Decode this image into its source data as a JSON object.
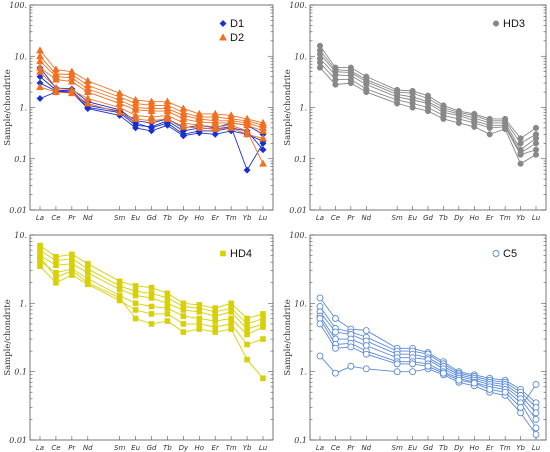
{
  "chart_data": [
    {
      "type": "line",
      "panel": "top-left",
      "categories": [
        "La",
        "Ce",
        "Pr",
        "Nd",
        "Sm",
        "Eu",
        "Gd",
        "Tb",
        "Dy",
        "Ho",
        "Er",
        "Tm",
        "Yb",
        "Lu"
      ],
      "x_positions": [
        0,
        1,
        2,
        3,
        5,
        6,
        7,
        8,
        9,
        10,
        11,
        12,
        13,
        14
      ],
      "ylabel": "Sample/chondrite",
      "yscale": "log",
      "ylim": [
        0.01,
        100
      ],
      "yticks": [
        "0.01",
        "0.1",
        "1.",
        "10.",
        "100."
      ],
      "legend_position": "top-right",
      "series": [
        {
          "name": "D1",
          "group": "D1",
          "color": "#1a2fd0",
          "marker": "diamond",
          "values": [
            6.0,
            2.4,
            2.3,
            1.3,
            0.9,
            0.55,
            0.5,
            0.6,
            0.4,
            0.45,
            0.4,
            0.5,
            0.45,
            0.3
          ]
        },
        {
          "name": "",
          "group": "D1",
          "color": "#1a2fd0",
          "marker": "diamond",
          "values": [
            1.5,
            2.0,
            2.0,
            1.0,
            0.8,
            0.45,
            0.42,
            0.55,
            0.35,
            0.4,
            0.38,
            0.42,
            0.06,
            0.2
          ]
        },
        {
          "name": "",
          "group": "D1",
          "color": "#1a2fd0",
          "marker": "diamond",
          "values": [
            4.0,
            2.2,
            2.1,
            1.1,
            0.85,
            0.5,
            0.4,
            0.5,
            0.3,
            0.35,
            0.35,
            0.4,
            0.35,
            0.15
          ]
        },
        {
          "name": "",
          "group": "D1",
          "color": "#1a2fd0",
          "marker": "diamond",
          "values": [
            3.0,
            2.1,
            2.0,
            0.95,
            0.7,
            0.4,
            0.35,
            0.45,
            0.28,
            0.32,
            0.3,
            0.35,
            0.3,
            0.22
          ]
        },
        {
          "name": "D2",
          "group": "D2",
          "color": "#f07020",
          "marker": "triangle",
          "values": [
            13,
            5.5,
            5.0,
            3.3,
            1.9,
            1.4,
            1.3,
            1.3,
            0.95,
            0.75,
            0.75,
            0.7,
            0.6,
            0.5
          ]
        },
        {
          "name": "",
          "group": "D2",
          "color": "#f07020",
          "marker": "triangle",
          "values": [
            10,
            4.5,
            4.4,
            2.7,
            1.6,
            1.2,
            1.1,
            1.1,
            0.8,
            0.65,
            0.65,
            0.6,
            0.55,
            0.45
          ]
        },
        {
          "name": "",
          "group": "D2",
          "color": "#f07020",
          "marker": "triangle",
          "values": [
            8,
            4.0,
            3.8,
            2.3,
            1.4,
            1.0,
            0.95,
            0.95,
            0.7,
            0.6,
            0.55,
            0.55,
            0.5,
            0.4
          ]
        },
        {
          "name": "",
          "group": "D2",
          "color": "#f07020",
          "marker": "triangle",
          "values": [
            6,
            3.5,
            3.2,
            2.0,
            1.2,
            0.9,
            0.85,
            0.85,
            0.6,
            0.52,
            0.5,
            0.5,
            0.45,
            0.35
          ]
        },
        {
          "name": "",
          "group": "D2",
          "color": "#f07020",
          "marker": "triangle",
          "values": [
            5,
            2.4,
            2.2,
            1.5,
            1.0,
            0.7,
            0.65,
            0.7,
            0.5,
            0.45,
            0.42,
            0.45,
            0.35,
            0.08
          ]
        },
        {
          "name": "",
          "group": "D2",
          "color": "#f07020",
          "marker": "triangle",
          "values": [
            2.5,
            2.0,
            1.9,
            1.2,
            0.8,
            0.6,
            0.55,
            0.6,
            0.42,
            0.4,
            0.38,
            0.4,
            0.3,
            0.25
          ]
        }
      ]
    },
    {
      "type": "line",
      "panel": "top-right",
      "categories": [
        "La",
        "Ce",
        "Pr",
        "Nd",
        "Sm",
        "Eu",
        "Gd",
        "Tb",
        "Dy",
        "Ho",
        "Er",
        "Tm",
        "Yb",
        "Lu"
      ],
      "x_positions": [
        0,
        1,
        2,
        3,
        5,
        6,
        7,
        8,
        9,
        10,
        11,
        12,
        13,
        14
      ],
      "ylabel": "Sample/chondrite",
      "yscale": "log",
      "ylim": [
        0.01,
        100
      ],
      "yticks": [
        "0.01",
        "0.1",
        "1.",
        "10.",
        "100."
      ],
      "legend_position": "top-right",
      "series": [
        {
          "name": "HD3",
          "group": "HD3",
          "color": "#888888",
          "marker": "circle",
          "values": [
            16,
            6.0,
            6.0,
            4.0,
            2.2,
            2.1,
            1.7,
            1.1,
            0.85,
            0.75,
            0.6,
            0.6,
            0.25,
            0.4
          ]
        },
        {
          "name": "",
          "group": "HD3",
          "color": "#888888",
          "marker": "circle",
          "values": [
            13,
            5.5,
            5.2,
            3.5,
            2.0,
            1.9,
            1.5,
            1.0,
            0.8,
            0.7,
            0.55,
            0.55,
            0.2,
            0.3
          ]
        },
        {
          "name": "",
          "group": "HD3",
          "color": "#888888",
          "marker": "circle",
          "values": [
            11,
            5.0,
            4.8,
            3.2,
            1.8,
            1.6,
            1.3,
            0.9,
            0.75,
            0.62,
            0.5,
            0.5,
            0.15,
            0.25
          ]
        },
        {
          "name": "",
          "group": "HD3",
          "color": "#888888",
          "marker": "circle",
          "values": [
            9,
            4.3,
            4.2,
            2.8,
            1.6,
            1.4,
            1.2,
            0.8,
            0.7,
            0.55,
            0.45,
            0.45,
            0.13,
            0.2
          ]
        },
        {
          "name": "",
          "group": "HD3",
          "color": "#888888",
          "marker": "circle",
          "values": [
            7.5,
            3.5,
            3.5,
            2.3,
            1.4,
            1.2,
            1.0,
            0.7,
            0.6,
            0.5,
            0.4,
            0.42,
            0.12,
            0.15
          ]
        },
        {
          "name": "",
          "group": "HD3",
          "color": "#888888",
          "marker": "circle",
          "values": [
            6,
            2.8,
            3.0,
            2.0,
            1.2,
            1.0,
            0.85,
            0.6,
            0.5,
            0.42,
            0.3,
            0.38,
            0.08,
            0.12
          ]
        }
      ]
    },
    {
      "type": "line",
      "panel": "bottom-left",
      "categories": [
        "La",
        "Ce",
        "Pr",
        "Nd",
        "Sm",
        "Eu",
        "Gd",
        "Tb",
        "Dy",
        "Ho",
        "Er",
        "Tm",
        "Yb",
        "Lu"
      ],
      "x_positions": [
        0,
        1,
        2,
        3,
        5,
        6,
        7,
        8,
        9,
        10,
        11,
        12,
        13,
        14
      ],
      "ylabel": "Sample/chondrite",
      "yscale": "log",
      "ylim": [
        0.01,
        10
      ],
      "yticks": [
        "0.01",
        "0.1",
        "1.",
        "10."
      ],
      "legend_position": "top-right",
      "series": [
        {
          "name": "HD4",
          "group": "HD4",
          "color": "#d8d000",
          "marker": "square",
          "values": [
            7.0,
            4.8,
            5.2,
            3.8,
            2.1,
            1.8,
            1.7,
            1.4,
            1.0,
            0.95,
            0.85,
            1.0,
            0.6,
            0.7
          ]
        },
        {
          "name": "",
          "group": "HD4",
          "color": "#d8d000",
          "marker": "square",
          "values": [
            6.0,
            4.2,
            4.5,
            3.2,
            1.8,
            1.5,
            1.4,
            1.2,
            0.9,
            0.85,
            0.75,
            0.85,
            0.5,
            0.6
          ]
        },
        {
          "name": "",
          "group": "HD4",
          "color": "#d8d000",
          "marker": "square",
          "values": [
            5.0,
            3.6,
            3.8,
            2.8,
            1.6,
            1.3,
            1.2,
            1.0,
            0.8,
            0.75,
            0.65,
            0.75,
            0.42,
            0.5
          ]
        },
        {
          "name": "",
          "group": "HD4",
          "color": "#d8d000",
          "marker": "square",
          "values": [
            4.2,
            2.8,
            3.2,
            2.3,
            1.3,
            1.0,
            0.9,
            0.85,
            0.65,
            0.6,
            0.55,
            0.6,
            0.35,
            0.45
          ]
        },
        {
          "name": "",
          "group": "HD4",
          "color": "#d8d000",
          "marker": "square",
          "values": [
            3.5,
            2.0,
            2.6,
            1.9,
            1.1,
            0.8,
            0.7,
            0.7,
            0.5,
            0.5,
            0.45,
            0.5,
            0.25,
            0.3
          ]
        },
        {
          "name": "",
          "group": "HD4",
          "color": "#d8d000",
          "marker": "square",
          "values": [
            4.8,
            2.4,
            3.0,
            2.0,
            1.2,
            0.6,
            0.5,
            0.55,
            0.38,
            0.42,
            0.38,
            0.42,
            0.15,
            0.08
          ]
        }
      ]
    },
    {
      "type": "line",
      "panel": "bottom-right",
      "categories": [
        "La",
        "Ce",
        "Pr",
        "Nd",
        "Sm",
        "Eu",
        "Gd",
        "Tb",
        "Dy",
        "Ho",
        "Er",
        "Tm",
        "Yb",
        "Lu"
      ],
      "x_positions": [
        0,
        1,
        2,
        3,
        5,
        6,
        7,
        8,
        9,
        10,
        11,
        12,
        13,
        14
      ],
      "ylabel": "Sample/chondrite",
      "yscale": "log",
      "ylim": [
        0.1,
        100
      ],
      "yticks": [
        "0.1",
        "1.",
        "10.",
        "100."
      ],
      "legend_position": "top-right",
      "series": [
        {
          "name": "C5",
          "group": "C5",
          "color": "#5a8ad8",
          "marker": "open-circle",
          "values": [
            12,
            6,
            4.2,
            4.0,
            2.2,
            2.2,
            1.9,
            1.4,
            1.0,
            0.9,
            0.8,
            0.75,
            0.55,
            0.35
          ]
        },
        {
          "name": "",
          "group": "C5",
          "color": "#5a8ad8",
          "marker": "open-circle",
          "values": [
            9,
            4.3,
            3.8,
            3.2,
            2.0,
            2.0,
            1.8,
            1.3,
            0.95,
            0.85,
            0.75,
            0.7,
            0.5,
            0.3
          ]
        },
        {
          "name": "",
          "group": "C5",
          "color": "#5a8ad8",
          "marker": "open-circle",
          "values": [
            7.5,
            3.8,
            3.5,
            2.8,
            1.8,
            1.8,
            1.6,
            1.2,
            0.9,
            0.8,
            0.7,
            0.65,
            0.45,
            0.25
          ]
        },
        {
          "name": "",
          "group": "C5",
          "color": "#5a8ad8",
          "marker": "open-circle",
          "values": [
            6.5,
            3.0,
            3.0,
            2.4,
            1.6,
            1.6,
            1.5,
            1.1,
            0.85,
            0.75,
            0.65,
            0.6,
            0.4,
            0.2
          ]
        },
        {
          "name": "",
          "group": "C5",
          "color": "#5a8ad8",
          "marker": "open-circle",
          "values": [
            6.0,
            2.5,
            2.6,
            2.0,
            1.4,
            1.4,
            1.3,
            1.0,
            0.8,
            0.7,
            0.6,
            0.55,
            0.35,
            0.15
          ]
        },
        {
          "name": "",
          "group": "C5",
          "color": "#5a8ad8",
          "marker": "open-circle",
          "values": [
            1.7,
            0.95,
            1.2,
            1.1,
            1.0,
            1.0,
            1.1,
            0.9,
            0.7,
            0.62,
            0.5,
            0.45,
            0.25,
            0.12
          ]
        },
        {
          "name": "",
          "group": "C5",
          "color": "#5a8ad8",
          "marker": "open-circle",
          "values": [
            5,
            2.2,
            2.3,
            1.8,
            1.3,
            1.3,
            1.2,
            0.95,
            0.75,
            0.68,
            0.55,
            0.5,
            0.3,
            0.65
          ]
        }
      ]
    }
  ]
}
